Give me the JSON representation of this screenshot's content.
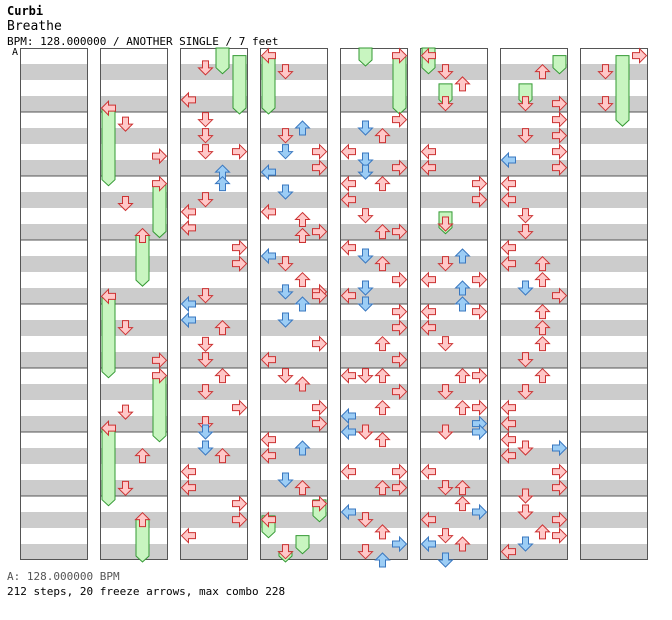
{
  "header": {
    "artist": "Curbi",
    "title": "Breathe",
    "info": "BPM: 128.000000 / ANOTHER SINGLE / 7 feet",
    "marker": "A"
  },
  "footer": {
    "bpm_line": "A: 128.000000 BPM",
    "stats": "212 steps, 20 freeze arrows, max combo 228"
  },
  "colors": {
    "red_fill": "#ffc8c8",
    "red_stroke": "#cc3333",
    "blue_fill": "#9ccdf5",
    "blue_stroke": "#3a78c0",
    "freeze_fill": "#c8f5c0",
    "freeze_stroke": "#339933",
    "stripe": "#cccccc",
    "border": "#555555"
  },
  "chart": {
    "lanes": [
      "left",
      "down",
      "up",
      "right"
    ],
    "columns": [
      {
        "arrows": [],
        "freezes": []
      },
      {
        "arrows": [
          [
            0,
            0.94,
            "r"
          ],
          [
            1,
            1.19,
            "r"
          ],
          [
            3,
            1.69,
            "r"
          ],
          [
            3,
            2.12,
            "r"
          ],
          [
            1,
            2.43,
            "r"
          ],
          [
            2,
            2.93,
            "r"
          ],
          [
            0,
            3.88,
            "r"
          ],
          [
            1,
            4.37,
            "r"
          ],
          [
            3,
            4.88,
            "r"
          ],
          [
            3,
            5.12,
            "r"
          ],
          [
            1,
            5.69,
            "r"
          ],
          [
            0,
            5.94,
            "r"
          ],
          [
            2,
            6.37,
            "r"
          ],
          [
            1,
            6.88,
            "r"
          ],
          [
            2,
            7.37,
            "r"
          ]
        ],
        "freezes": [
          [
            0,
            0.94,
            2.12
          ],
          [
            3,
            2.12,
            2.93
          ],
          [
            2,
            2.93,
            3.69
          ],
          [
            0,
            3.88,
            5.12
          ],
          [
            3,
            5.12,
            6.12
          ],
          [
            0,
            5.94,
            7.12
          ],
          [
            2,
            7.37,
            8.0
          ]
        ]
      },
      {
        "arrows": [
          [
            1,
            0.31,
            "r"
          ],
          [
            0,
            0.81,
            "r"
          ],
          [
            1,
            1.12,
            "r"
          ],
          [
            1,
            1.37,
            "r"
          ],
          [
            1,
            1.62,
            "r"
          ],
          [
            3,
            1.62,
            "r"
          ],
          [
            2,
            1.94,
            "b"
          ],
          [
            2,
            2.12,
            "b"
          ],
          [
            1,
            2.37,
            "r"
          ],
          [
            0,
            2.56,
            "r"
          ],
          [
            0,
            2.81,
            "r"
          ],
          [
            3,
            3.12,
            "r"
          ],
          [
            3,
            3.37,
            "r"
          ],
          [
            1,
            3.87,
            "r"
          ],
          [
            0,
            4.0,
            "b"
          ],
          [
            0,
            4.25,
            "b"
          ],
          [
            2,
            4.37,
            "r"
          ],
          [
            1,
            4.63,
            "r"
          ],
          [
            1,
            4.87,
            "r"
          ],
          [
            2,
            5.12,
            "r"
          ],
          [
            1,
            5.37,
            "r"
          ],
          [
            3,
            5.62,
            "r"
          ],
          [
            1,
            5.87,
            "r"
          ],
          [
            1,
            6.0,
            "b"
          ],
          [
            1,
            6.25,
            "b"
          ],
          [
            2,
            6.37,
            "r"
          ],
          [
            0,
            6.62,
            "r"
          ],
          [
            0,
            6.87,
            "r"
          ],
          [
            3,
            7.12,
            "r"
          ],
          [
            3,
            7.37,
            "r"
          ],
          [
            0,
            7.62,
            "r"
          ]
        ],
        "freezes": [
          [
            2,
            0.0,
            0.37
          ],
          [
            3,
            0.12,
            1.0
          ]
        ]
      },
      {
        "arrows": [
          [
            0,
            0.12,
            "r"
          ],
          [
            1,
            0.37,
            "r"
          ],
          [
            2,
            1.25,
            "b"
          ],
          [
            1,
            1.37,
            "r"
          ],
          [
            1,
            1.62,
            "b"
          ],
          [
            3,
            1.62,
            "r"
          ],
          [
            3,
            1.87,
            "r"
          ],
          [
            0,
            1.94,
            "b"
          ],
          [
            1,
            2.25,
            "b"
          ],
          [
            0,
            2.56,
            "r"
          ],
          [
            2,
            2.68,
            "r"
          ],
          [
            3,
            2.87,
            "r"
          ],
          [
            2,
            2.93,
            "r"
          ],
          [
            0,
            3.25,
            "b"
          ],
          [
            1,
            3.37,
            "r"
          ],
          [
            2,
            3.62,
            "r"
          ],
          [
            1,
            3.81,
            "b"
          ],
          [
            3,
            3.81,
            "r"
          ],
          [
            3,
            3.87,
            "r"
          ],
          [
            2,
            4.0,
            "b"
          ],
          [
            1,
            4.25,
            "b"
          ],
          [
            3,
            4.62,
            "r"
          ],
          [
            0,
            4.87,
            "r"
          ],
          [
            1,
            5.12,
            "r"
          ],
          [
            2,
            5.25,
            "r"
          ],
          [
            3,
            5.62,
            "r"
          ],
          [
            3,
            5.87,
            "r"
          ],
          [
            0,
            6.12,
            "r"
          ],
          [
            0,
            6.37,
            "r"
          ],
          [
            2,
            6.25,
            "b"
          ],
          [
            1,
            6.75,
            "b"
          ],
          [
            2,
            6.87,
            "r"
          ],
          [
            3,
            7.12,
            "r"
          ],
          [
            0,
            7.37,
            "r"
          ],
          [
            1,
            7.87,
            "r"
          ]
        ],
        "freezes": [
          [
            0,
            0.12,
            1.0
          ],
          [
            3,
            7.06,
            7.37
          ],
          [
            0,
            7.31,
            7.62
          ],
          [
            2,
            7.62,
            7.87
          ],
          [
            1,
            7.87,
            8.0
          ]
        ]
      },
      {
        "arrows": [
          [
            3,
            0.12,
            "r"
          ],
          [
            3,
            1.12,
            "r"
          ],
          [
            1,
            1.25,
            "b"
          ],
          [
            2,
            1.37,
            "r"
          ],
          [
            0,
            1.62,
            "r"
          ],
          [
            1,
            1.75,
            "b"
          ],
          [
            3,
            1.87,
            "r"
          ],
          [
            1,
            1.94,
            "b"
          ],
          [
            0,
            2.12,
            "r"
          ],
          [
            2,
            2.12,
            "r"
          ],
          [
            0,
            2.37,
            "r"
          ],
          [
            1,
            2.62,
            "r"
          ],
          [
            3,
            2.87,
            "r"
          ],
          [
            2,
            2.87,
            "r"
          ],
          [
            0,
            3.12,
            "r"
          ],
          [
            1,
            3.25,
            "b"
          ],
          [
            2,
            3.37,
            "r"
          ],
          [
            3,
            3.62,
            "r"
          ],
          [
            1,
            3.75,
            "b"
          ],
          [
            0,
            3.87,
            "r"
          ],
          [
            1,
            4.0,
            "b"
          ],
          [
            3,
            4.12,
            "r"
          ],
          [
            3,
            4.37,
            "r"
          ],
          [
            2,
            4.62,
            "r"
          ],
          [
            3,
            4.87,
            "r"
          ],
          [
            0,
            5.12,
            "r"
          ],
          [
            1,
            5.12,
            "r"
          ],
          [
            2,
            5.12,
            "r"
          ],
          [
            3,
            5.37,
            "r"
          ],
          [
            2,
            5.62,
            "r"
          ],
          [
            0,
            5.75,
            "b"
          ],
          [
            0,
            6.0,
            "b"
          ],
          [
            1,
            6.0,
            "r"
          ],
          [
            2,
            6.12,
            "r"
          ],
          [
            0,
            6.62,
            "r"
          ],
          [
            3,
            6.62,
            "r"
          ],
          [
            2,
            6.87,
            "r"
          ],
          [
            3,
            6.87,
            "r"
          ],
          [
            0,
            7.25,
            "b"
          ],
          [
            1,
            7.37,
            "r"
          ],
          [
            2,
            7.56,
            "r"
          ],
          [
            3,
            7.75,
            "b"
          ],
          [
            1,
            7.87,
            "r"
          ],
          [
            2,
            8.0,
            "b"
          ]
        ],
        "freezes": [
          [
            1,
            0.0,
            0.25
          ],
          [
            3,
            0.12,
            1.0
          ]
        ]
      },
      {
        "arrows": [
          [
            0,
            0.12,
            "r"
          ],
          [
            1,
            0.37,
            "r"
          ],
          [
            2,
            0.56,
            "r"
          ],
          [
            1,
            0.87,
            "r"
          ],
          [
            0,
            1.62,
            "r"
          ],
          [
            0,
            1.87,
            "r"
          ],
          [
            3,
            2.12,
            "r"
          ],
          [
            3,
            2.37,
            "r"
          ],
          [
            1,
            2.75,
            "r"
          ],
          [
            2,
            3.25,
            "b"
          ],
          [
            1,
            3.37,
            "r"
          ],
          [
            0,
            3.62,
            "r"
          ],
          [
            3,
            3.62,
            "r"
          ],
          [
            2,
            3.75,
            "b"
          ],
          [
            2,
            4.0,
            "b"
          ],
          [
            0,
            4.12,
            "r"
          ],
          [
            3,
            4.12,
            "r"
          ],
          [
            0,
            4.37,
            "r"
          ],
          [
            1,
            4.62,
            "r"
          ],
          [
            2,
            5.12,
            "r"
          ],
          [
            3,
            5.12,
            "r"
          ],
          [
            1,
            5.37,
            "r"
          ],
          [
            2,
            5.62,
            "r"
          ],
          [
            3,
            5.62,
            "r"
          ],
          [
            3,
            5.87,
            "b"
          ],
          [
            1,
            6.0,
            "r"
          ],
          [
            3,
            6.0,
            "b"
          ],
          [
            0,
            6.62,
            "r"
          ],
          [
            1,
            6.87,
            "r"
          ],
          [
            2,
            6.87,
            "r"
          ],
          [
            2,
            7.12,
            "r"
          ],
          [
            3,
            7.25,
            "b"
          ],
          [
            0,
            7.37,
            "r"
          ],
          [
            0,
            7.75,
            "b"
          ],
          [
            1,
            7.62,
            "r"
          ],
          [
            2,
            7.75,
            "r"
          ],
          [
            1,
            8.0,
            "b"
          ]
        ],
        "freezes": [
          [
            0,
            0.0,
            0.37
          ],
          [
            1,
            0.56,
            0.87
          ],
          [
            1,
            2.56,
            2.87
          ]
        ]
      },
      {
        "arrows": [
          [
            2,
            0.37,
            "r"
          ],
          [
            1,
            0.87,
            "r"
          ],
          [
            3,
            0.87,
            "r"
          ],
          [
            3,
            1.12,
            "r"
          ],
          [
            1,
            1.37,
            "r"
          ],
          [
            3,
            1.37,
            "r"
          ],
          [
            3,
            1.62,
            "r"
          ],
          [
            0,
            1.75,
            "b"
          ],
          [
            3,
            1.87,
            "r"
          ],
          [
            0,
            2.12,
            "r"
          ],
          [
            0,
            2.37,
            "r"
          ],
          [
            1,
            2.62,
            "r"
          ],
          [
            1,
            2.87,
            "r"
          ],
          [
            0,
            3.12,
            "r"
          ],
          [
            0,
            3.37,
            "r"
          ],
          [
            2,
            3.37,
            "r"
          ],
          [
            2,
            3.62,
            "r"
          ],
          [
            1,
            3.75,
            "b"
          ],
          [
            3,
            3.87,
            "r"
          ],
          [
            2,
            4.12,
            "r"
          ],
          [
            2,
            4.37,
            "r"
          ],
          [
            2,
            4.62,
            "r"
          ],
          [
            1,
            4.87,
            "r"
          ],
          [
            2,
            5.12,
            "r"
          ],
          [
            1,
            5.37,
            "r"
          ],
          [
            0,
            5.62,
            "r"
          ],
          [
            0,
            5.87,
            "r"
          ],
          [
            0,
            6.12,
            "r"
          ],
          [
            1,
            6.25,
            "r"
          ],
          [
            3,
            6.25,
            "b"
          ],
          [
            0,
            6.37,
            "r"
          ],
          [
            3,
            6.62,
            "r"
          ],
          [
            3,
            6.87,
            "r"
          ],
          [
            1,
            7.0,
            "r"
          ],
          [
            1,
            7.25,
            "r"
          ],
          [
            3,
            7.37,
            "r"
          ],
          [
            2,
            7.56,
            "r"
          ],
          [
            3,
            7.62,
            "r"
          ],
          [
            1,
            7.75,
            "b"
          ],
          [
            0,
            7.87,
            "r"
          ]
        ],
        "freezes": [
          [
            3,
            0.12,
            0.37
          ],
          [
            1,
            0.56,
            0.87
          ]
        ]
      },
      {
        "arrows": [
          [
            3,
            0.12,
            "r"
          ],
          [
            1,
            0.37,
            "r"
          ],
          [
            1,
            0.87,
            "r"
          ]
        ],
        "freezes": [
          [
            2,
            0.12,
            1.19
          ]
        ]
      }
    ]
  }
}
